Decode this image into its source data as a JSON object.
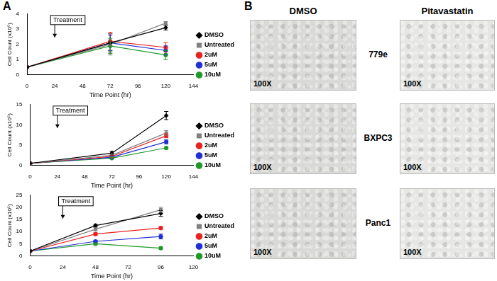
{
  "chart_data": [
    {
      "type": "line",
      "xlabel": "Time Point (hr)",
      "ylabel": "Cell Count (x10⁵)",
      "x": [
        0,
        72,
        120
      ],
      "xlim": [
        0,
        144
      ],
      "xticks": [
        0,
        24,
        48,
        72,
        96,
        120,
        144
      ],
      "ylim": [
        0,
        4
      ],
      "yticks": [
        0,
        1,
        2,
        3,
        4
      ],
      "grid": false,
      "legend": "right",
      "annotations": [
        {
          "text": "Treatment",
          "x": 24
        }
      ],
      "series": [
        {
          "name": "DMSO",
          "color": "#000000",
          "marker": "diamond",
          "values": [
            0.5,
            2.1,
            3.1
          ],
          "errors": [
            0,
            0.6,
            0.15
          ]
        },
        {
          "name": "Untreated",
          "color": "#808080",
          "marker": "square",
          "values": [
            0.5,
            2.0,
            3.4
          ],
          "errors": [
            0,
            0.7,
            0.1
          ]
        },
        {
          "name": "2uM",
          "color": "#e8221f",
          "marker": "circle",
          "values": [
            0.5,
            2.2,
            1.8
          ],
          "errors": [
            0,
            0.6,
            0.3
          ]
        },
        {
          "name": "5uM",
          "color": "#1f2fd6",
          "marker": "circle",
          "values": [
            0.5,
            2.1,
            1.6
          ],
          "errors": [
            0,
            0.5,
            0.3
          ]
        },
        {
          "name": "10uM",
          "color": "#1f9a2a",
          "marker": "circle",
          "values": [
            0.5,
            1.9,
            1.3
          ],
          "errors": [
            0,
            0.5,
            0.3
          ]
        }
      ]
    },
    {
      "type": "line",
      "xlabel": "Time Point (hr)",
      "ylabel": "Cell Count (x10⁵)",
      "x": [
        0,
        72,
        120
      ],
      "xlim": [
        0,
        144
      ],
      "xticks": [
        0,
        24,
        48,
        72,
        96,
        120,
        144
      ],
      "ylim": [
        0,
        15
      ],
      "yticks": [
        0,
        5,
        10,
        15
      ],
      "grid": false,
      "legend": "right",
      "annotations": [
        {
          "text": "Treatment",
          "x": 24
        }
      ],
      "series": [
        {
          "name": "DMSO",
          "color": "#000000",
          "marker": "diamond",
          "values": [
            0.5,
            3.0,
            12.3
          ],
          "errors": [
            0,
            0.5,
            1.0
          ]
        },
        {
          "name": "Untreated",
          "color": "#808080",
          "marker": "square",
          "values": [
            0.5,
            2.5,
            8.0
          ],
          "errors": [
            0,
            0.3,
            0.6
          ]
        },
        {
          "name": "2uM",
          "color": "#e8221f",
          "marker": "circle",
          "values": [
            0.5,
            2.2,
            7.3
          ],
          "errors": [
            0,
            0.3,
            0.5
          ]
        },
        {
          "name": "5uM",
          "color": "#1f2fd6",
          "marker": "circle",
          "values": [
            0.5,
            2.0,
            5.8
          ],
          "errors": [
            0,
            0.3,
            0.5
          ]
        },
        {
          "name": "10uM",
          "color": "#1f9a2a",
          "marker": "circle",
          "values": [
            0.5,
            1.8,
            4.3
          ],
          "errors": [
            0,
            0.2,
            0.3
          ]
        }
      ]
    },
    {
      "type": "line",
      "xlabel": "Time Point (hr)",
      "ylabel": "Cell Count (x10⁵)",
      "x": [
        0,
        48,
        96
      ],
      "xlim": [
        0,
        120
      ],
      "xticks": [
        0,
        24,
        48,
        72,
        96,
        120
      ],
      "ylim": [
        0,
        25
      ],
      "yticks": [
        0,
        5,
        10,
        15,
        20,
        25
      ],
      "grid": false,
      "legend": "right",
      "annotations": [
        {
          "text": "Treatment",
          "x": 24
        }
      ],
      "series": [
        {
          "name": "DMSO",
          "color": "#000000",
          "marker": "diamond",
          "values": [
            2.0,
            12.5,
            17.5
          ],
          "errors": [
            0,
            0.6,
            1.2
          ]
        },
        {
          "name": "Untreated",
          "color": "#808080",
          "marker": "square",
          "values": [
            2.0,
            11.0,
            19.0
          ],
          "errors": [
            0,
            0.6,
            1.0
          ]
        },
        {
          "name": "2uM",
          "color": "#e8221f",
          "marker": "circle",
          "values": [
            2.0,
            9.0,
            11.5
          ],
          "errors": [
            0,
            0.5,
            0.5
          ]
        },
        {
          "name": "5uM",
          "color": "#1f2fd6",
          "marker": "circle",
          "values": [
            2.0,
            6.0,
            8.0
          ],
          "errors": [
            0,
            0.4,
            1.0
          ]
        },
        {
          "name": "10uM",
          "color": "#1f9a2a",
          "marker": "circle",
          "values": [
            2.0,
            5.0,
            3.2
          ],
          "errors": [
            0,
            0.4,
            0.5
          ]
        }
      ]
    }
  ],
  "panel_labels": [
    "A",
    "B"
  ],
  "image_grid": {
    "columns": [
      "DMSO",
      "Pitavastatin"
    ],
    "rows": [
      "779e",
      "BXPC3",
      "Panc1"
    ],
    "magnification": "100X"
  }
}
